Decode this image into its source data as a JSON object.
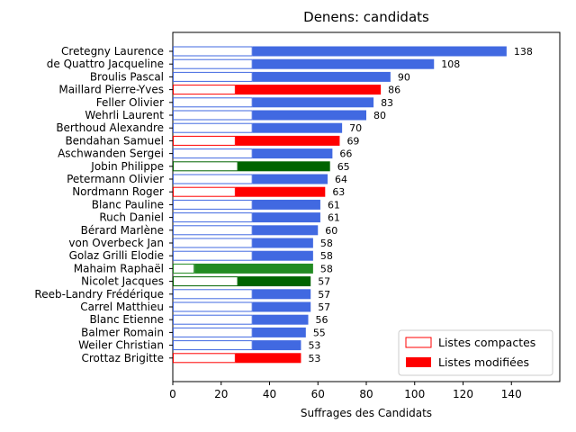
{
  "chart_data": {
    "type": "bar",
    "orientation": "horizontal",
    "stacked": true,
    "title": "Denens: candidats",
    "xlabel": "Suffrages des Candidats",
    "ylabel": "",
    "xlim": [
      0,
      160
    ],
    "x_ticks": [
      0,
      20,
      40,
      60,
      80,
      100,
      120,
      140
    ],
    "legend": {
      "placement": "lower-right",
      "entries": [
        {
          "label": "Listes compactes",
          "style": "outline",
          "color": "#ff0000"
        },
        {
          "label": "Listes modifiées",
          "style": "filled",
          "color": "#ff0000"
        }
      ]
    },
    "colors": {
      "blue": "#4169e1",
      "red": "#ff0000",
      "darkgreen": "#006400",
      "green": "#228b22"
    },
    "candidates": [
      {
        "name": "Cretegny Laurence",
        "compact": 33,
        "total": 138,
        "color": "blue"
      },
      {
        "name": "de Quattro Jacqueline",
        "compact": 33,
        "total": 108,
        "color": "blue"
      },
      {
        "name": "Broulis Pascal",
        "compact": 33,
        "total": 90,
        "color": "blue"
      },
      {
        "name": "Maillard Pierre-Yves",
        "compact": 26,
        "total": 86,
        "color": "red"
      },
      {
        "name": "Feller Olivier",
        "compact": 33,
        "total": 83,
        "color": "blue"
      },
      {
        "name": "Wehrli Laurent",
        "compact": 33,
        "total": 80,
        "color": "blue"
      },
      {
        "name": "Berthoud Alexandre",
        "compact": 33,
        "total": 70,
        "color": "blue"
      },
      {
        "name": "Bendahan Samuel",
        "compact": 26,
        "total": 69,
        "color": "red"
      },
      {
        "name": "Aschwanden Sergei",
        "compact": 33,
        "total": 66,
        "color": "blue"
      },
      {
        "name": "Jobin Philippe",
        "compact": 27,
        "total": 65,
        "color": "darkgreen"
      },
      {
        "name": "Petermann Olivier",
        "compact": 33,
        "total": 64,
        "color": "blue"
      },
      {
        "name": "Nordmann Roger",
        "compact": 26,
        "total": 63,
        "color": "red"
      },
      {
        "name": "Blanc Pauline",
        "compact": 33,
        "total": 61,
        "color": "blue"
      },
      {
        "name": "Ruch Daniel",
        "compact": 33,
        "total": 61,
        "color": "blue"
      },
      {
        "name": "Bérard Marlène",
        "compact": 33,
        "total": 60,
        "color": "blue"
      },
      {
        "name": "von Overbeck Jan",
        "compact": 33,
        "total": 58,
        "color": "blue"
      },
      {
        "name": "Golaz Grilli Elodie",
        "compact": 33,
        "total": 58,
        "color": "blue"
      },
      {
        "name": "Mahaim Raphaël",
        "compact": 9,
        "total": 58,
        "color": "green"
      },
      {
        "name": "Nicolet Jacques",
        "compact": 27,
        "total": 57,
        "color": "darkgreen"
      },
      {
        "name": "Reeb-Landry Frédérique",
        "compact": 33,
        "total": 57,
        "color": "blue"
      },
      {
        "name": "Carrel Matthieu",
        "compact": 33,
        "total": 57,
        "color": "blue"
      },
      {
        "name": "Blanc Etienne",
        "compact": 33,
        "total": 56,
        "color": "blue"
      },
      {
        "name": "Balmer Romain",
        "compact": 33,
        "total": 55,
        "color": "blue"
      },
      {
        "name": "Weiler Christian",
        "compact": 33,
        "total": 53,
        "color": "blue"
      },
      {
        "name": "Crottaz Brigitte",
        "compact": 26,
        "total": 53,
        "color": "red"
      }
    ]
  }
}
